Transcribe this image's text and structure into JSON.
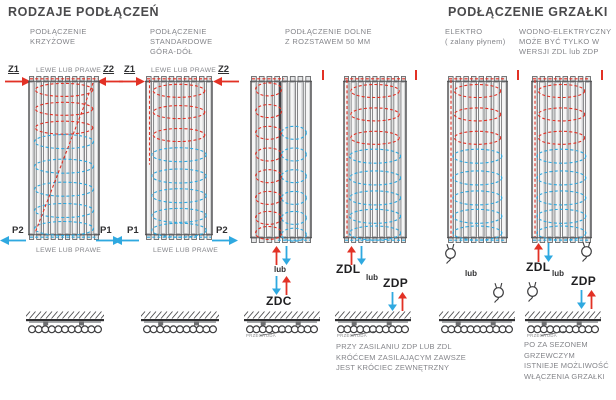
{
  "colors": {
    "hot": "#e23125",
    "cold": "#2fa9e0",
    "dark": "#3c3c3e",
    "text": "#84858a",
    "label": "#2f2f31"
  },
  "headers": {
    "left": "RODZAJE PODŁĄCZEŃ",
    "right": "PODŁĄCZENIE GRZAŁKI"
  },
  "sections": [
    {
      "title": "PODŁĄCZENIE\nKRZYŻOWE",
      "top_left": "Z1",
      "top_right": "Z2",
      "bottom_left": "P2",
      "bottom_right": "P1",
      "top_note": "LEWE LUB PRAWE",
      "bottom_note": "LEWE LUB PRAWE"
    },
    {
      "title": "PODŁĄCZENIE\nSTANDARDOWE\nGÓRA-DÓŁ",
      "top_left": "Z1",
      "top_right": "Z2",
      "bottom_left": "P1",
      "bottom_right": "P2",
      "top_note": "LEWE LUB PRAWE",
      "bottom_note": "LEWE LUB PRAWE"
    },
    {
      "title": "PODŁĄCZENIE DOLNE\nZ ROZSTAWEM 50 MM",
      "lub": "lub",
      "connection": "ZDC",
      "floor_label": "PRZEGRODA"
    },
    {
      "lub": "lub",
      "left_connection": "ZDL",
      "right_connection": "ZDP",
      "floor_label": "PRZEGRODA",
      "note": "PRZY ZASILANIU ZDP LUB ZDL\nKRÓĆCEM ZASILAJĄCYM ZAWSZE\nJEST KRÓCIEC ZEWNĘTRZNY"
    },
    {
      "title": "ELEKTRO\n( zalany płynem)",
      "lub": "lub"
    },
    {
      "title": "WODNO-ELEKTRYCZNY\nMOŻE BYĆ TYLKO W\nWERSJI ZDL lub ZDP",
      "lub": "lub",
      "left_connection": "ZDL",
      "right_connection": "ZDP",
      "floor_label": "PRZEGRODA",
      "note": "PO ZA SEZONEM\nGRZEWCZYM\nISTNIEJE MOŻLIWOŚĆ\nWŁĄCZENIA GRZAŁKI"
    }
  ]
}
